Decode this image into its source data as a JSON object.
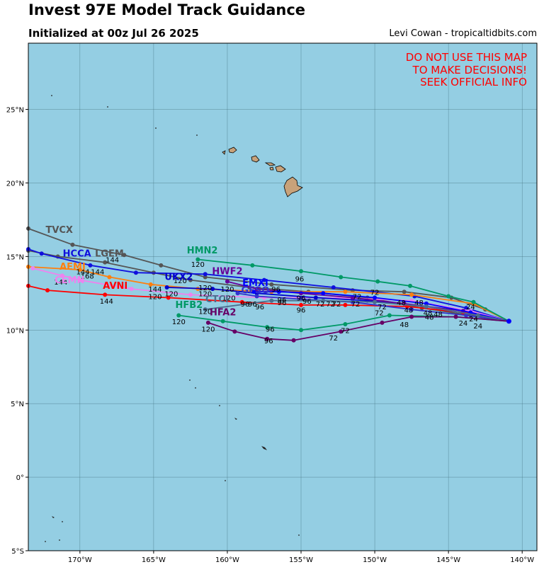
{
  "header": {
    "title": "Invest 97E Model Track Guidance",
    "subtitle": "Initialized at 00z Jul 26 2025",
    "credit": "Levi Cowan - tropicaltidbits.com"
  },
  "warning": [
    "DO NOT USE THIS MAP",
    "TO MAKE DECISIONS!",
    "SEEK OFFICIAL INFO"
  ],
  "colors": {
    "ocean": "#94cee3",
    "land": "#c8a27a",
    "grid": "#3d6b78",
    "warning": "#ff0000"
  },
  "map": {
    "lon_range": [
      -173.5,
      -139
    ],
    "lat_range": [
      -5,
      29.5
    ],
    "lon_ticks": [
      -170,
      -165,
      -160,
      -155,
      -150,
      -145,
      -140
    ],
    "lat_ticks": [
      -5,
      0,
      5,
      10,
      15,
      20,
      25
    ],
    "lon_tick_labels": [
      "170°W",
      "165°W",
      "160°W",
      "155°W",
      "150°W",
      "145°W",
      "140°W"
    ],
    "lat_tick_labels": [
      "5°S",
      "0°",
      "5°N",
      "10°N",
      "15°N",
      "20°N",
      "25°N"
    ]
  },
  "tracks": [
    {
      "name": "TVCX",
      "color": "#555555",
      "label_at": [
        -171.4,
        16.6
      ],
      "points": [
        [
          -140.9,
          10.6
        ],
        [
          -142.5,
          11.4
        ],
        [
          -144.8,
          12.2
        ],
        [
          -148.0,
          12.6
        ],
        [
          -151.5,
          12.7
        ],
        [
          -157.0,
          13.1
        ],
        [
          -161.5,
          13.6
        ],
        [
          -164.5,
          14.4
        ],
        [
          -167.0,
          15.1
        ],
        [
          -170.5,
          15.8
        ],
        [
          -173.5,
          16.9
        ]
      ]
    },
    {
      "name": "LGEM",
      "color": "#555555",
      "label_at": [
        -168.0,
        15.0
      ],
      "points": [
        [
          -140.9,
          10.6
        ],
        [
          -143.5,
          11.0
        ],
        [
          -146.8,
          11.5
        ],
        [
          -150.5,
          12.2
        ],
        [
          -154.5,
          12.6
        ],
        [
          -158.5,
          12.9
        ],
        [
          -162.5,
          13.4
        ],
        [
          -165.0,
          13.9
        ],
        [
          -168.3,
          14.6
        ],
        [
          -171.5,
          15.0
        ],
        [
          -173.5,
          15.4
        ]
      ]
    },
    {
      "name": "HCCA",
      "color": "#1010dd",
      "label_at": [
        -170.2,
        15.0
      ],
      "points": [
        [
          -140.9,
          10.6
        ],
        [
          -143.8,
          11.5
        ],
        [
          -147.3,
          12.3
        ],
        [
          -152.8,
          12.9
        ],
        [
          -157.5,
          13.4
        ],
        [
          -161.5,
          13.8
        ],
        [
          -166.2,
          13.9
        ],
        [
          -169.3,
          14.4
        ],
        [
          -172.6,
          15.2
        ],
        [
          -173.5,
          15.5
        ]
      ]
    },
    {
      "name": "AEMI",
      "color": "#ff7f0e",
      "label_at": [
        -170.5,
        14.1
      ],
      "points": [
        [
          -140.9,
          10.6
        ],
        [
          -143.3,
          11.8
        ],
        [
          -147.5,
          12.4
        ],
        [
          -152.0,
          12.6
        ],
        [
          -157.0,
          12.6
        ],
        [
          -162.0,
          12.8
        ],
        [
          -165.2,
          13.1
        ],
        [
          -168.0,
          13.6
        ],
        [
          -170.0,
          14.1
        ],
        [
          -173.5,
          14.3
        ]
      ]
    },
    {
      "name": "CEMN",
      "color": "#ee82ee",
      "label_at": [
        -170.7,
        13.2
      ],
      "points": [
        [
          -140.9,
          10.6
        ],
        [
          -143.5,
          11.3
        ],
        [
          -147.5,
          12.0
        ],
        [
          -152.5,
          12.2
        ],
        [
          -157.5,
          12.2
        ],
        [
          -162.5,
          12.4
        ],
        [
          -166.5,
          12.8
        ],
        [
          -170.0,
          13.4
        ],
        [
          -171.2,
          13.7
        ],
        [
          -173.2,
          14.2
        ]
      ]
    },
    {
      "name": "AVNI",
      "color": "#ff0000",
      "label_at": [
        -167.6,
        12.8
      ],
      "points": [
        [
          -140.9,
          10.6
        ],
        [
          -144.0,
          11.2
        ],
        [
          -147.8,
          11.6
        ],
        [
          -152.0,
          11.7
        ],
        [
          -155.0,
          11.7
        ],
        [
          -159.0,
          11.9
        ],
        [
          -164.0,
          12.2
        ],
        [
          -168.3,
          12.4
        ],
        [
          -172.2,
          12.7
        ],
        [
          -173.5,
          13.0
        ]
      ]
    },
    {
      "name": "UKX2",
      "color": "#0000cc",
      "label_at": [
        -163.3,
        13.4
      ],
      "points": [
        [
          -140.9,
          10.6
        ],
        [
          -143.0,
          11.0
        ],
        [
          -146.5,
          11.6
        ],
        [
          -150.5,
          12.0
        ],
        [
          -154.0,
          12.2
        ],
        [
          -158.0,
          12.5
        ],
        [
          -161.0,
          12.8
        ],
        [
          -164.1,
          12.9
        ]
      ]
    },
    {
      "name": "HMN2",
      "color": "#009966",
      "label_at": [
        -161.7,
        15.2
      ],
      "points": [
        [
          -140.9,
          10.6
        ],
        [
          -143.3,
          11.9
        ],
        [
          -145.0,
          12.3
        ],
        [
          -147.6,
          13.0
        ],
        [
          -149.8,
          13.3
        ],
        [
          -152.3,
          13.6
        ],
        [
          -155.0,
          14.0
        ],
        [
          -158.3,
          14.4
        ],
        [
          -162.0,
          14.8
        ]
      ]
    },
    {
      "name": "HWF2",
      "color": "#660099",
      "label_at": [
        -160.0,
        13.8
      ],
      "points": [
        [
          -140.9,
          10.6
        ],
        [
          -144.0,
          11.3
        ],
        [
          -148.0,
          11.8
        ],
        [
          -151.5,
          12.2
        ],
        [
          -155.0,
          12.5
        ],
        [
          -158.0,
          12.8
        ],
        [
          -160.0,
          13.3
        ]
      ]
    },
    {
      "name": "EMXI",
      "color": "#0000ff",
      "label_at": [
        -158.1,
        13.0
      ],
      "points": [
        [
          -140.9,
          10.6
        ],
        [
          -143.5,
          11.2
        ],
        [
          -146.5,
          11.8
        ],
        [
          -150.0,
          12.2
        ],
        [
          -153.5,
          12.5
        ],
        [
          -156.5,
          12.6
        ],
        [
          -158.2,
          12.6
        ]
      ]
    },
    {
      "name": "GFSO",
      "color": "#3333cc",
      "label_at": [
        -158.1,
        12.5
      ],
      "points": [
        [
          -140.9,
          10.6
        ],
        [
          -143.8,
          11.0
        ],
        [
          -147.5,
          11.4
        ],
        [
          -151.5,
          11.9
        ],
        [
          -155.0,
          12.1
        ],
        [
          -158.0,
          12.3
        ],
        [
          -159.3,
          12.5
        ]
      ]
    },
    {
      "name": "CTCI",
      "color": "#4b6f8f",
      "label_at": [
        -160.7,
        11.9
      ],
      "points": [
        [
          -140.9,
          10.6
        ],
        [
          -143.0,
          11.0
        ],
        [
          -146.5,
          11.6
        ],
        [
          -150.0,
          11.9
        ],
        [
          -153.5,
          12.0
        ],
        [
          -157.0,
          12.0
        ],
        [
          -161.5,
          11.4
        ]
      ]
    },
    {
      "name": "HFB2",
      "color": "#009966",
      "label_at": [
        -162.6,
        11.5
      ],
      "points": [
        [
          -140.9,
          10.6
        ],
        [
          -144.5,
          10.9
        ],
        [
          -149.0,
          11.0
        ],
        [
          -152.0,
          10.4
        ],
        [
          -155.0,
          10.0
        ],
        [
          -157.3,
          10.2
        ],
        [
          -160.3,
          10.6
        ],
        [
          -163.3,
          11.0
        ]
      ]
    },
    {
      "name": "HFA2",
      "color": "#660066",
      "label_at": [
        -160.3,
        11.0
      ],
      "points": [
        [
          -140.9,
          10.6
        ],
        [
          -144.5,
          10.9
        ],
        [
          -147.5,
          10.9
        ],
        [
          -149.5,
          10.5
        ],
        [
          -152.3,
          9.9
        ],
        [
          -155.5,
          9.3
        ],
        [
          -157.3,
          9.4
        ],
        [
          -159.5,
          9.9
        ],
        [
          -161.3,
          10.5
        ]
      ]
    }
  ],
  "hour_labels": [
    {
      "text": "24",
      "at": [
        -144.0,
        10.3
      ]
    },
    {
      "text": "24",
      "at": [
        -143.0,
        10.1
      ]
    },
    {
      "text": "24",
      "at": [
        -143.3,
        10.6
      ]
    },
    {
      "text": "24",
      "at": [
        -143.5,
        11.4
      ]
    },
    {
      "text": "48",
      "at": [
        -148.2,
        11.7
      ]
    },
    {
      "text": "48",
      "at": [
        -146.4,
        11.0
      ]
    },
    {
      "text": "48",
      "at": [
        -145.7,
        10.9
      ]
    },
    {
      "text": "48",
      "at": [
        -147.7,
        11.2
      ]
    },
    {
      "text": "48",
      "at": [
        -148.0,
        10.2
      ]
    },
    {
      "text": "48",
      "at": [
        -146.3,
        10.7
      ]
    },
    {
      "text": "48",
      "at": [
        -147.0,
        11.7
      ]
    },
    {
      "text": "72",
      "at": [
        -149.5,
        11.4
      ]
    },
    {
      "text": "72",
      "at": [
        -149.7,
        11.0
      ]
    },
    {
      "text": "72",
      "at": [
        -150.0,
        12.4
      ]
    },
    {
      "text": "72",
      "at": [
        -151.2,
        12.1
      ]
    },
    {
      "text": "72",
      "at": [
        -153.0,
        11.6
      ]
    },
    {
      "text": "72",
      "at": [
        -153.7,
        11.6
      ]
    },
    {
      "text": "72",
      "at": [
        -152.6,
        11.6
      ]
    },
    {
      "text": "72",
      "at": [
        -151.3,
        11.6
      ]
    },
    {
      "text": "72",
      "at": [
        -152.0,
        9.8
      ]
    },
    {
      "text": "72",
      "at": [
        -152.8,
        9.3
      ]
    },
    {
      "text": "96",
      "at": [
        -155.1,
        13.3
      ]
    },
    {
      "text": "96",
      "at": [
        -156.7,
        12.6
      ]
    },
    {
      "text": "96",
      "at": [
        -155.0,
        12.0
      ]
    },
    {
      "text": "96",
      "at": [
        -154.6,
        11.8
      ]
    },
    {
      "text": "96",
      "at": [
        -155.0,
        11.2
      ]
    },
    {
      "text": "96",
      "at": [
        -156.3,
        11.7
      ]
    },
    {
      "text": "96",
      "at": [
        -157.8,
        11.4
      ]
    },
    {
      "text": "96",
      "at": [
        -158.3,
        11.6
      ]
    },
    {
      "text": "96",
      "at": [
        -158.8,
        11.6
      ]
    },
    {
      "text": "96",
      "at": [
        -156.3,
        11.9
      ]
    },
    {
      "text": "96",
      "at": [
        -157.1,
        9.9
      ]
    },
    {
      "text": "96",
      "at": [
        -157.2,
        9.1
      ]
    },
    {
      "text": "120",
      "at": [
        -162.0,
        14.3
      ]
    },
    {
      "text": "120",
      "at": [
        -163.2,
        13.2
      ]
    },
    {
      "text": "120",
      "at": [
        -161.5,
        12.7
      ]
    },
    {
      "text": "120",
      "at": [
        -161.5,
        12.3
      ]
    },
    {
      "text": "120",
      "at": [
        -160.0,
        12.6
      ]
    },
    {
      "text": "120",
      "at": [
        -159.9,
        12.0
      ]
    },
    {
      "text": "120",
      "at": [
        -163.8,
        12.3
      ]
    },
    {
      "text": "120",
      "at": [
        -164.9,
        12.1
      ]
    },
    {
      "text": "120",
      "at": [
        -161.5,
        11.1
      ]
    },
    {
      "text": "120",
      "at": [
        -163.3,
        10.4
      ]
    },
    {
      "text": "120",
      "at": [
        -161.3,
        9.9
      ]
    },
    {
      "text": "144",
      "at": [
        -167.8,
        14.6
      ]
    },
    {
      "text": "144",
      "at": [
        -168.8,
        13.8
      ]
    },
    {
      "text": "144",
      "at": [
        -169.8,
        13.8
      ]
    },
    {
      "text": "144",
      "at": [
        -164.9,
        12.6
      ]
    },
    {
      "text": "144",
      "at": [
        -171.3,
        13.1
      ]
    },
    {
      "text": "144",
      "at": [
        -168.2,
        11.8
      ]
    },
    {
      "text": "168",
      "at": [
        -169.5,
        13.5
      ]
    }
  ]
}
